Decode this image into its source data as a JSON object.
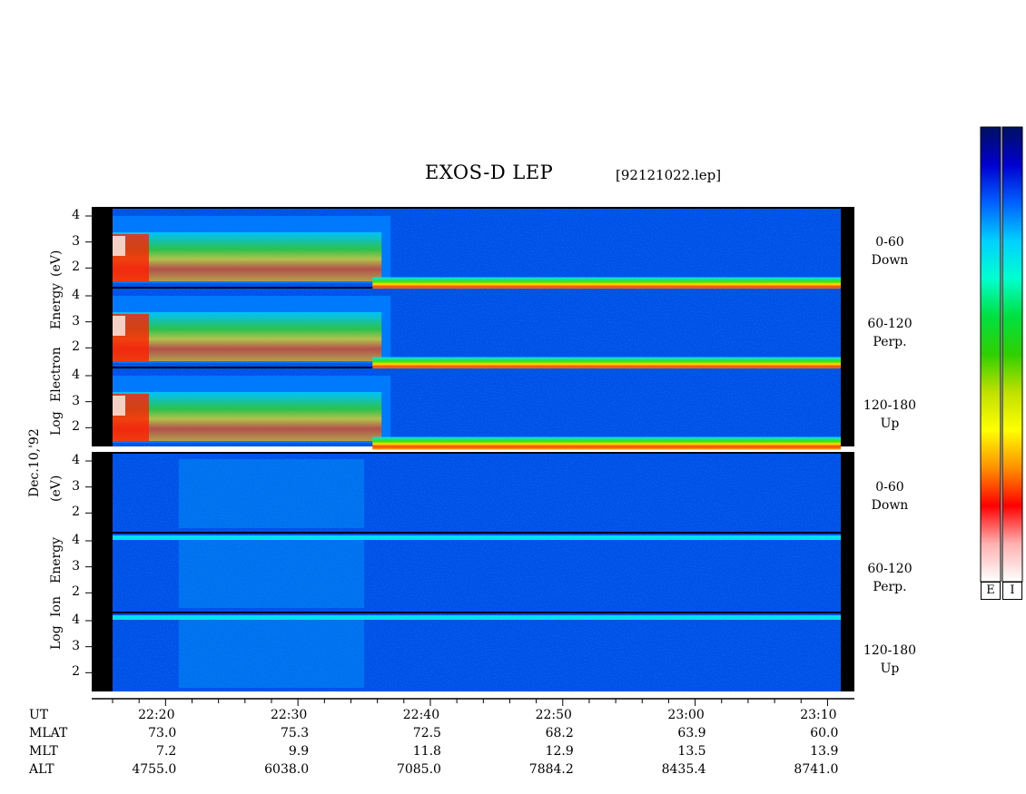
{
  "chart_data": {
    "type": "heatmap",
    "title": "EXOS-D LEP",
    "file": "[92121022.lep]",
    "date_label": "Dec.10,'92",
    "groups": [
      {
        "name": "Electron",
        "ylabel_parts": [
          "Log",
          "Electron",
          "Energy",
          "(eV)"
        ],
        "panels": [
          {
            "channel": [
              "0-60",
              "Down"
            ]
          },
          {
            "channel": [
              "60-120",
              "Perp."
            ]
          },
          {
            "channel": [
              "120-180",
              "Up"
            ]
          }
        ]
      },
      {
        "name": "Ion",
        "ylabel_parts": [
          "Log",
          "Ion",
          "Energy",
          "(eV)"
        ],
        "panels": [
          {
            "channel": [
              "0-60",
              "Down"
            ]
          },
          {
            "channel": [
              "60-120",
              "Perp."
            ]
          },
          {
            "channel": [
              "120-180",
              "Up"
            ]
          }
        ]
      }
    ],
    "ytick_labels": [
      "4",
      "3",
      "2"
    ],
    "ylim": [
      1,
      4
    ],
    "x_range_minutes": [
      1336,
      1391
    ],
    "ut_ticks": [
      "22:20",
      "22:30",
      "22:40",
      "22:50",
      "23:00",
      "23:10"
    ],
    "ut_tick_minutes": [
      1340,
      1350,
      1360,
      1370,
      1380,
      1390
    ],
    "rows": [
      {
        "label": "UT"
      },
      {
        "label": "MLAT",
        "values": [
          "73.0",
          "75.3",
          "72.5",
          "68.2",
          "63.9",
          "60.0"
        ]
      },
      {
        "label": "MLT",
        "values": [
          "7.2",
          "9.9",
          "11.8",
          "12.9",
          "13.5",
          "13.9"
        ]
      },
      {
        "label": "ALT",
        "values": [
          "4755.0",
          "6038.0",
          "7085.0",
          "7884.2",
          "8435.4",
          "8741.0"
        ]
      }
    ],
    "colorbar": {
      "labels": [
        "E",
        "I"
      ],
      "colors": [
        "#001060",
        "#0000d0",
        "#0060ff",
        "#00d0ff",
        "#00ffd0",
        "#00e040",
        "#30d000",
        "#c0e000",
        "#ffff00",
        "#ff9000",
        "#ff0000",
        "#ffb0b0",
        "#ffffff"
      ]
    }
  }
}
